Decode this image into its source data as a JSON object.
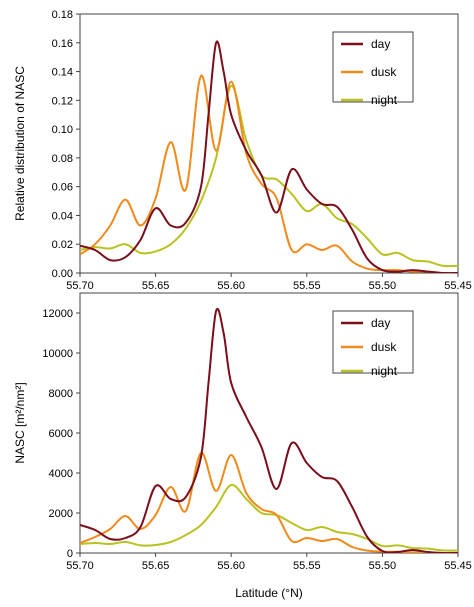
{
  "chart_data": [
    {
      "type": "line",
      "ylabel": "Relative distribution of NASC",
      "xlabel": "",
      "xlim": [
        55.7,
        55.45
      ],
      "x_reversed": true,
      "ylim": [
        0,
        0.18
      ],
      "xticks": [
        "55.70",
        "55.65",
        "55.60",
        "55.55",
        "55.50",
        "55.45"
      ],
      "xtick_values": [
        55.7,
        55.65,
        55.6,
        55.55,
        55.5,
        55.45
      ],
      "yticks": [
        "0.00",
        "0.02",
        "0.04",
        "0.06",
        "0.08",
        "0.10",
        "0.12",
        "0.14",
        "0.16",
        "0.18"
      ],
      "ytick_values": [
        0,
        0.02,
        0.04,
        0.06,
        0.08,
        0.1,
        0.12,
        0.14,
        0.16,
        0.18
      ],
      "grid": false,
      "legend": "top-right",
      "series": [
        {
          "name": "day",
          "color": "#7a0e1a",
          "points": [
            [
              55.7,
              0.019
            ],
            [
              55.69,
              0.016
            ],
            [
              55.68,
              0.009
            ],
            [
              55.67,
              0.011
            ],
            [
              55.66,
              0.023
            ],
            [
              55.65,
              0.045
            ],
            [
              55.64,
              0.033
            ],
            [
              55.63,
              0.035
            ],
            [
              55.62,
              0.06
            ],
            [
              55.615,
              0.11
            ],
            [
              55.61,
              0.16
            ],
            [
              55.605,
              0.14
            ],
            [
              55.6,
              0.11
            ],
            [
              55.59,
              0.085
            ],
            [
              55.58,
              0.068
            ],
            [
              55.57,
              0.042
            ],
            [
              55.56,
              0.072
            ],
            [
              55.55,
              0.058
            ],
            [
              55.54,
              0.048
            ],
            [
              55.53,
              0.046
            ],
            [
              55.52,
              0.03
            ],
            [
              55.51,
              0.01
            ],
            [
              55.5,
              0.002
            ],
            [
              55.49,
              0.001
            ],
            [
              55.48,
              0.002
            ],
            [
              55.47,
              0.001
            ],
            [
              55.46,
              0.0
            ],
            [
              55.45,
              0.0
            ]
          ]
        },
        {
          "name": "dusk",
          "color": "#f08a1c",
          "points": [
            [
              55.7,
              0.013
            ],
            [
              55.69,
              0.02
            ],
            [
              55.68,
              0.033
            ],
            [
              55.67,
              0.051
            ],
            [
              55.66,
              0.033
            ],
            [
              55.65,
              0.052
            ],
            [
              55.64,
              0.091
            ],
            [
              55.63,
              0.058
            ],
            [
              55.62,
              0.137
            ],
            [
              55.61,
              0.085
            ],
            [
              55.6,
              0.133
            ],
            [
              55.59,
              0.083
            ],
            [
              55.58,
              0.062
            ],
            [
              55.57,
              0.052
            ],
            [
              55.56,
              0.016
            ],
            [
              55.55,
              0.02
            ],
            [
              55.54,
              0.016
            ],
            [
              55.53,
              0.019
            ],
            [
              55.52,
              0.008
            ],
            [
              55.51,
              0.003
            ],
            [
              55.5,
              0.002
            ],
            [
              55.49,
              0.002
            ],
            [
              55.48,
              0.001
            ],
            [
              55.47,
              0.001
            ],
            [
              55.46,
              0.0
            ],
            [
              55.45,
              0.0
            ]
          ]
        },
        {
          "name": "night",
          "color": "#b8c220",
          "points": [
            [
              55.7,
              0.016
            ],
            [
              55.69,
              0.018
            ],
            [
              55.68,
              0.017
            ],
            [
              55.67,
              0.02
            ],
            [
              55.66,
              0.014
            ],
            [
              55.65,
              0.015
            ],
            [
              55.64,
              0.02
            ],
            [
              55.63,
              0.031
            ],
            [
              55.62,
              0.05
            ],
            [
              55.61,
              0.08
            ],
            [
              55.6,
              0.13
            ],
            [
              55.59,
              0.092
            ],
            [
              55.58,
              0.068
            ],
            [
              55.57,
              0.065
            ],
            [
              55.56,
              0.055
            ],
            [
              55.55,
              0.043
            ],
            [
              55.54,
              0.048
            ],
            [
              55.53,
              0.038
            ],
            [
              55.52,
              0.034
            ],
            [
              55.51,
              0.024
            ],
            [
              55.5,
              0.013
            ],
            [
              55.49,
              0.014
            ],
            [
              55.48,
              0.009
            ],
            [
              55.47,
              0.008
            ],
            [
              55.46,
              0.005
            ],
            [
              55.45,
              0.005
            ]
          ]
        }
      ]
    },
    {
      "type": "line",
      "ylabel": "NASC [m²/nm²]",
      "xlabel": "Latitude (°N)",
      "xlim": [
        55.7,
        55.45
      ],
      "x_reversed": true,
      "ylim": [
        0,
        13000
      ],
      "xticks": [
        "55.70",
        "55.65",
        "55.60",
        "55.55",
        "55.50",
        "55.45"
      ],
      "xtick_values": [
        55.7,
        55.65,
        55.6,
        55.55,
        55.5,
        55.45
      ],
      "yticks": [
        "0",
        "2000",
        "4000",
        "6000",
        "8000",
        "10000",
        "12000"
      ],
      "ytick_values": [
        0,
        2000,
        4000,
        6000,
        8000,
        10000,
        12000
      ],
      "grid": false,
      "legend": "top-right",
      "series": [
        {
          "name": "day",
          "color": "#7a0e1a",
          "points": [
            [
              55.7,
              1400
            ],
            [
              55.69,
              1150
            ],
            [
              55.68,
              700
            ],
            [
              55.67,
              750
            ],
            [
              55.66,
              1300
            ],
            [
              55.65,
              3350
            ],
            [
              55.64,
              2700
            ],
            [
              55.63,
              2800
            ],
            [
              55.62,
              4800
            ],
            [
              55.615,
              8500
            ],
            [
              55.61,
              12100
            ],
            [
              55.605,
              11000
            ],
            [
              55.6,
              8500
            ],
            [
              55.59,
              6800
            ],
            [
              55.58,
              5300
            ],
            [
              55.57,
              3200
            ],
            [
              55.56,
              5500
            ],
            [
              55.55,
              4500
            ],
            [
              55.54,
              3800
            ],
            [
              55.53,
              3600
            ],
            [
              55.52,
              2300
            ],
            [
              55.51,
              800
            ],
            [
              55.5,
              100
            ],
            [
              55.49,
              50
            ],
            [
              55.48,
              150
            ],
            [
              55.47,
              50
            ],
            [
              55.46,
              0
            ],
            [
              55.45,
              0
            ]
          ]
        },
        {
          "name": "dusk",
          "color": "#f08a1c",
          "points": [
            [
              55.7,
              500
            ],
            [
              55.69,
              800
            ],
            [
              55.68,
              1200
            ],
            [
              55.67,
              1850
            ],
            [
              55.66,
              1200
            ],
            [
              55.65,
              1900
            ],
            [
              55.64,
              3300
            ],
            [
              55.63,
              2100
            ],
            [
              55.62,
              5000
            ],
            [
              55.61,
              3100
            ],
            [
              55.6,
              4900
            ],
            [
              55.59,
              3000
            ],
            [
              55.58,
              2200
            ],
            [
              55.57,
              1900
            ],
            [
              55.56,
              600
            ],
            [
              55.55,
              750
            ],
            [
              55.54,
              600
            ],
            [
              55.53,
              700
            ],
            [
              55.52,
              300
            ],
            [
              55.51,
              120
            ],
            [
              55.5,
              70
            ],
            [
              55.49,
              60
            ],
            [
              55.48,
              30
            ],
            [
              55.47,
              30
            ],
            [
              55.46,
              0
            ],
            [
              55.45,
              0
            ]
          ]
        },
        {
          "name": "night",
          "color": "#b8c220",
          "points": [
            [
              55.7,
              450
            ],
            [
              55.69,
              500
            ],
            [
              55.68,
              450
            ],
            [
              55.67,
              550
            ],
            [
              55.66,
              380
            ],
            [
              55.65,
              400
            ],
            [
              55.64,
              550
            ],
            [
              55.63,
              900
            ],
            [
              55.62,
              1400
            ],
            [
              55.61,
              2300
            ],
            [
              55.6,
              3400
            ],
            [
              55.59,
              2700
            ],
            [
              55.58,
              2000
            ],
            [
              55.57,
              1900
            ],
            [
              55.56,
              1500
            ],
            [
              55.55,
              1150
            ],
            [
              55.54,
              1300
            ],
            [
              55.53,
              1050
            ],
            [
              55.52,
              950
            ],
            [
              55.51,
              700
            ],
            [
              55.5,
              350
            ],
            [
              55.49,
              380
            ],
            [
              55.48,
              250
            ],
            [
              55.47,
              220
            ],
            [
              55.46,
              130
            ],
            [
              55.45,
              120
            ]
          ]
        }
      ]
    }
  ]
}
